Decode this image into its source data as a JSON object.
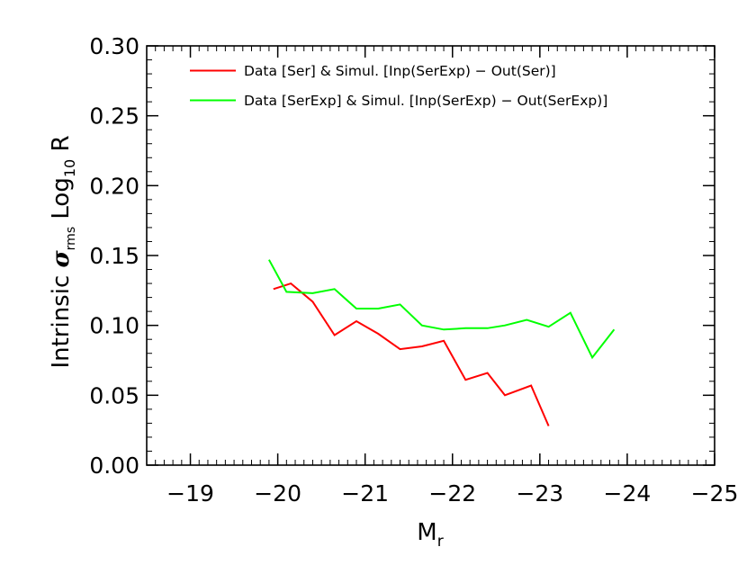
{
  "chart_data": {
    "type": "line",
    "title": "",
    "xlabel": "M",
    "xlabel_subscript": "r",
    "ylabel": {
      "prefix": "Intrinsic ",
      "sigma": "σ",
      "sigma_subscript": "rms",
      "log": " Log",
      "log_subscript": "10",
      "suffix": " R"
    },
    "xlim": [
      -18.5,
      -25
    ],
    "ylim": [
      0,
      0.3
    ],
    "x_ticks": [
      -19,
      -20,
      -21,
      -22,
      -23,
      -24,
      -25
    ],
    "x_tick_labels": [
      "−19",
      "−20",
      "−21",
      "−22",
      "−23",
      "−24",
      "−25"
    ],
    "y_ticks": [
      0,
      0.05,
      0.1,
      0.15,
      0.2,
      0.25,
      0.3
    ],
    "y_tick_labels": [
      "0.00",
      "0.05",
      "0.10",
      "0.15",
      "0.20",
      "0.25",
      "0.30"
    ],
    "x_minor_step": 0.1,
    "y_minor_step": 0.01,
    "grid": false,
    "legend_position": "top-right",
    "series": [
      {
        "name": "Data [Ser] & Simul. [Inp(SerExp) − Out(Ser)]",
        "color": "#ff0000",
        "x": [
          -19.95,
          -20.15,
          -20.4,
          -20.65,
          -20.9,
          -21.15,
          -21.4,
          -21.65,
          -21.9,
          -22.15,
          -22.4,
          -22.6,
          -22.9,
          -23.1
        ],
        "y": [
          0.126,
          0.13,
          0.117,
          0.093,
          0.103,
          0.094,
          0.083,
          0.085,
          0.089,
          0.061,
          0.066,
          0.05,
          0.057,
          0.028
        ]
      },
      {
        "name": "Data [SerExp] & Simul. [Inp(SerExp) − Out(SerExp)]",
        "color": "#00ff00",
        "x": [
          -19.9,
          -20.1,
          -20.4,
          -20.65,
          -20.9,
          -21.15,
          -21.4,
          -21.65,
          -21.9,
          -22.15,
          -22.4,
          -22.6,
          -22.85,
          -23.1,
          -23.35,
          -23.6,
          -23.85
        ],
        "y": [
          0.147,
          0.124,
          0.123,
          0.126,
          0.112,
          0.112,
          0.115,
          0.1,
          0.097,
          0.098,
          0.098,
          0.1,
          0.104,
          0.099,
          0.109,
          0.077,
          0.097
        ]
      }
    ]
  }
}
